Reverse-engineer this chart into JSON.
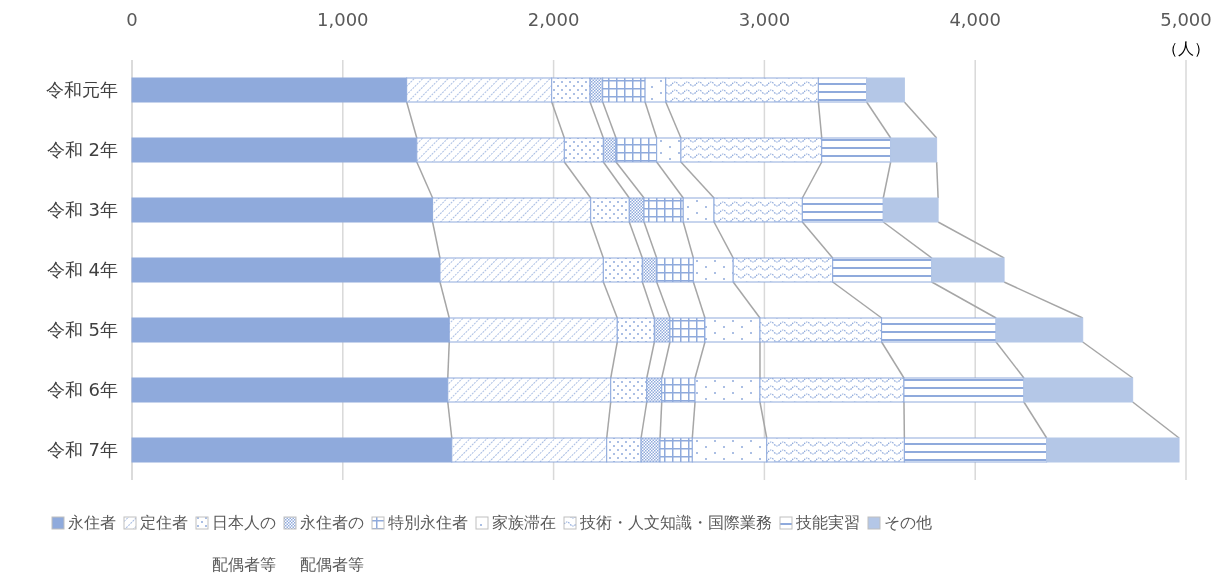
{
  "chart_data": {
    "type": "bar",
    "orientation": "horizontal",
    "stacked": true,
    "categories": [
      "令和元年",
      "令和 2年",
      "令和 3年",
      "令和 4年",
      "令和 5年",
      "令和 6年",
      "令和 7年"
    ],
    "xlabel": "（人）",
    "xlim": [
      0,
      5000
    ],
    "xticks": [
      {
        "value": 0,
        "label": "0"
      },
      {
        "value": 1000,
        "label": "1,000"
      },
      {
        "value": 2000,
        "label": "2,000"
      },
      {
        "value": 3000,
        "label": "3,000"
      },
      {
        "value": 4000,
        "label": "4,000"
      },
      {
        "value": 5000,
        "label": "5,000"
      }
    ],
    "grid": "x",
    "legend": "bottom",
    "series": [
      {
        "name": "永住者",
        "color": "#8faadc",
        "values": [
          1303,
          1351,
          1426,
          1461,
          1505,
          1498,
          1517
        ]
      },
      {
        "name": "定住者",
        "color": "#8faadc",
        "values": [
          688,
          700,
          750,
          775,
          797,
          773,
          735
        ]
      },
      {
        "name": "日本人の配偶者等",
        "color": "#8faadc",
        "values": [
          182,
          185,
          183,
          185,
          176,
          171,
          163
        ]
      },
      {
        "name": "永住者の配偶者等",
        "color": "#8faadc",
        "values": [
          60,
          60,
          70,
          68,
          74,
          71,
          90
        ]
      },
      {
        "name": "特別永住者",
        "color": "#8faadc",
        "values": [
          201,
          193,
          186,
          174,
          166,
          158,
          153
        ]
      },
      {
        "name": "家族滞在",
        "color": "#8faadc",
        "values": [
          98,
          115,
          146,
          189,
          261,
          308,
          353
        ]
      },
      {
        "name": "技術・人文知識・国際業務",
        "color": "#8faadc",
        "values": [
          724,
          668,
          419,
          472,
          577,
          683,
          653
        ]
      },
      {
        "name": "技能実習",
        "color": "#8faadc",
        "values": [
          229,
          327,
          384,
          470,
          543,
          569,
          675
        ]
      },
      {
        "name": "その他",
        "color": "#b4c7e7",
        "values": [
          179,
          218,
          260,
          343,
          411,
          516,
          628
        ]
      }
    ]
  }
}
